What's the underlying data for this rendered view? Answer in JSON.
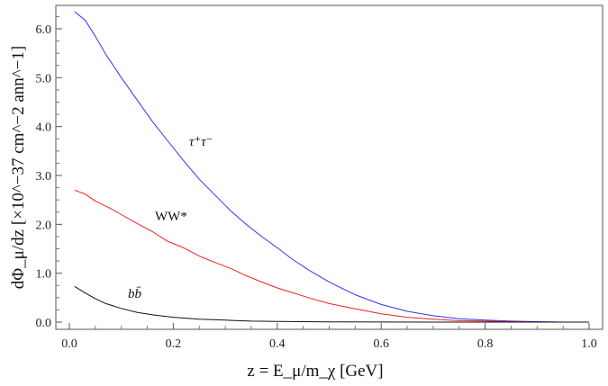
{
  "chart_data": {
    "type": "line",
    "title": "",
    "xlabel": "z = E_μ/m_χ [GeV]",
    "ylabel": "dΦ_μ/dz [×10^−37 cm^−2 ann^−1]",
    "xlim": [
      0.0,
      1.0
    ],
    "ylim": [
      0.0,
      6.5
    ],
    "xticks": [
      "0.0",
      "0.2",
      "0.4",
      "0.6",
      "0.8",
      "1.0"
    ],
    "yticks": [
      "0.0",
      "1.0",
      "2.0",
      "3.0",
      "4.0",
      "5.0",
      "6.0"
    ],
    "grid": false,
    "legend": "none",
    "series": [
      {
        "name": "τ⁺τ⁻",
        "color": "#3333ee",
        "x": [
          0.01,
          0.03,
          0.05,
          0.07,
          0.1,
          0.13,
          0.16,
          0.19,
          0.22,
          0.25,
          0.28,
          0.31,
          0.34,
          0.37,
          0.4,
          0.43,
          0.46,
          0.5,
          0.55,
          0.6,
          0.65,
          0.7,
          0.75,
          0.8,
          0.85,
          0.9,
          0.95,
          1.0
        ],
        "values": [
          6.35,
          6.18,
          5.85,
          5.48,
          5.0,
          4.55,
          4.1,
          3.7,
          3.3,
          2.92,
          2.6,
          2.28,
          2.0,
          1.75,
          1.52,
          1.28,
          1.07,
          0.82,
          0.56,
          0.36,
          0.22,
          0.13,
          0.07,
          0.04,
          0.02,
          0.01,
          0.0,
          0.0
        ]
      },
      {
        "name": "WW*",
        "color": "#ee2222",
        "x": [
          0.01,
          0.03,
          0.05,
          0.08,
          0.1,
          0.13,
          0.16,
          0.19,
          0.22,
          0.25,
          0.28,
          0.31,
          0.34,
          0.37,
          0.4,
          0.43,
          0.46,
          0.5,
          0.55,
          0.6,
          0.65,
          0.7,
          0.75,
          0.8,
          0.85,
          0.9,
          0.95,
          1.0
        ],
        "values": [
          2.7,
          2.62,
          2.48,
          2.32,
          2.2,
          2.02,
          1.85,
          1.65,
          1.52,
          1.35,
          1.22,
          1.1,
          0.95,
          0.82,
          0.7,
          0.6,
          0.5,
          0.38,
          0.27,
          0.17,
          0.1,
          0.06,
          0.03,
          0.02,
          0.01,
          0.0,
          0.0,
          0.0
        ]
      },
      {
        "name": "bb̄",
        "color": "#111111",
        "x": [
          0.01,
          0.03,
          0.05,
          0.07,
          0.1,
          0.13,
          0.16,
          0.2,
          0.25,
          0.3,
          0.35,
          0.4,
          0.5,
          0.6,
          0.7,
          0.8,
          0.9,
          1.0
        ],
        "values": [
          0.73,
          0.6,
          0.48,
          0.38,
          0.28,
          0.2,
          0.15,
          0.1,
          0.06,
          0.04,
          0.02,
          0.015,
          0.005,
          0.002,
          0.0,
          0.0,
          0.0,
          0.0
        ]
      }
    ]
  }
}
